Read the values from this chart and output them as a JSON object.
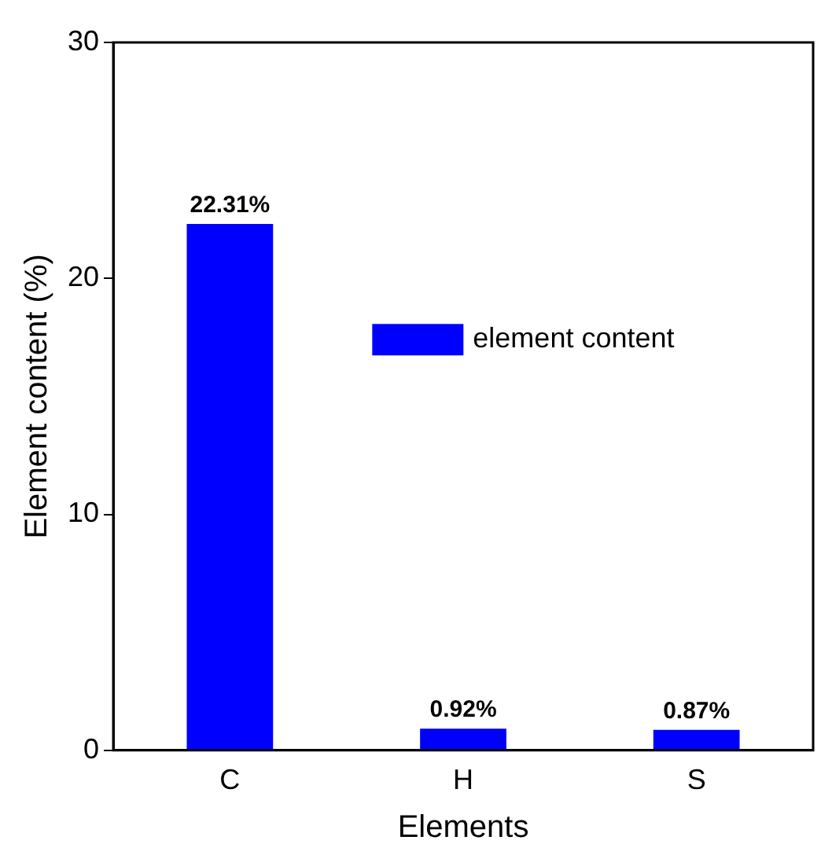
{
  "chart_data": {
    "type": "bar",
    "xlabel": "Elements",
    "ylabel": "Element content (%)",
    "categories": [
      "C",
      "H",
      "S"
    ],
    "series": [
      {
        "name": "element content",
        "color": "#0000ff",
        "values": [
          22.31,
          0.92,
          0.87
        ],
        "value_labels": [
          "22.31%",
          "0.92%",
          "0.87%"
        ]
      }
    ],
    "ylim": [
      0,
      30
    ],
    "yticks": [
      0,
      10,
      20,
      30
    ],
    "grid": false,
    "legend": "right"
  }
}
